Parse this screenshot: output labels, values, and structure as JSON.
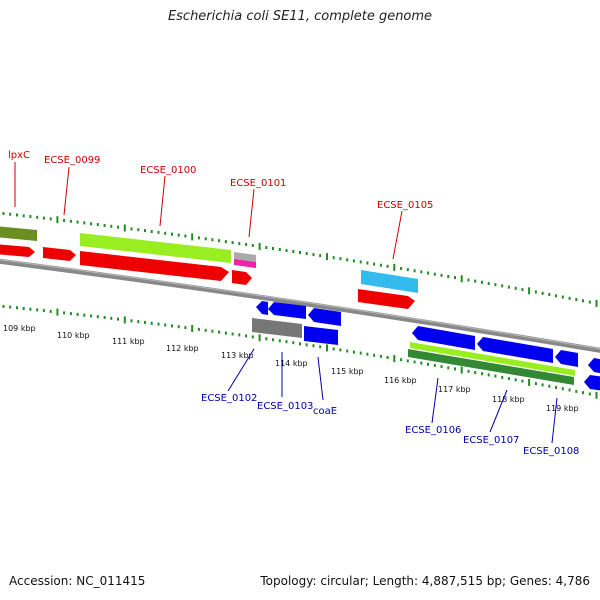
{
  "header": {
    "title": "Escherichia coli SE11, complete genome"
  },
  "footer": {
    "accession": "Accession: NC_011415",
    "summary": "Topology: circular; Length: 4,887,515 bp; Genes: 4,786"
  },
  "colors": {
    "forward_label": "#cc0000",
    "reverse_label": "#0000aa",
    "tick": "#228b22",
    "backbone": "#888888",
    "cds_forward": "#ff0000",
    "cds_reverse": "#0000ee",
    "rna_green": "#99ee22",
    "dark_green": "#338833",
    "olive": "#6b8e23",
    "cyan": "#33bbee",
    "gray": "#777777",
    "magenta": "#ee22aa"
  },
  "scale": {
    "tick_labels": [
      "109 kbp",
      "110 kbp",
      "111 kbp",
      "112 kbp",
      "113 kbp",
      "114 kbp",
      "115 kbp",
      "116 kbp",
      "117 kbp",
      "118 kbp",
      "119 kbp"
    ]
  },
  "forward_genes": [
    {
      "label": "lpxC"
    },
    {
      "label": "ECSE_0099"
    },
    {
      "label": "ECSE_0100"
    },
    {
      "label": "ECSE_0101"
    },
    {
      "label": "ECSE_0105"
    }
  ],
  "reverse_genes": [
    {
      "label": "ECSE_0102"
    },
    {
      "label": "ECSE_0103"
    },
    {
      "label": "coaE"
    },
    {
      "label": "ECSE_0106"
    },
    {
      "label": "ECSE_0107"
    },
    {
      "label": "ECSE_0108"
    }
  ]
}
